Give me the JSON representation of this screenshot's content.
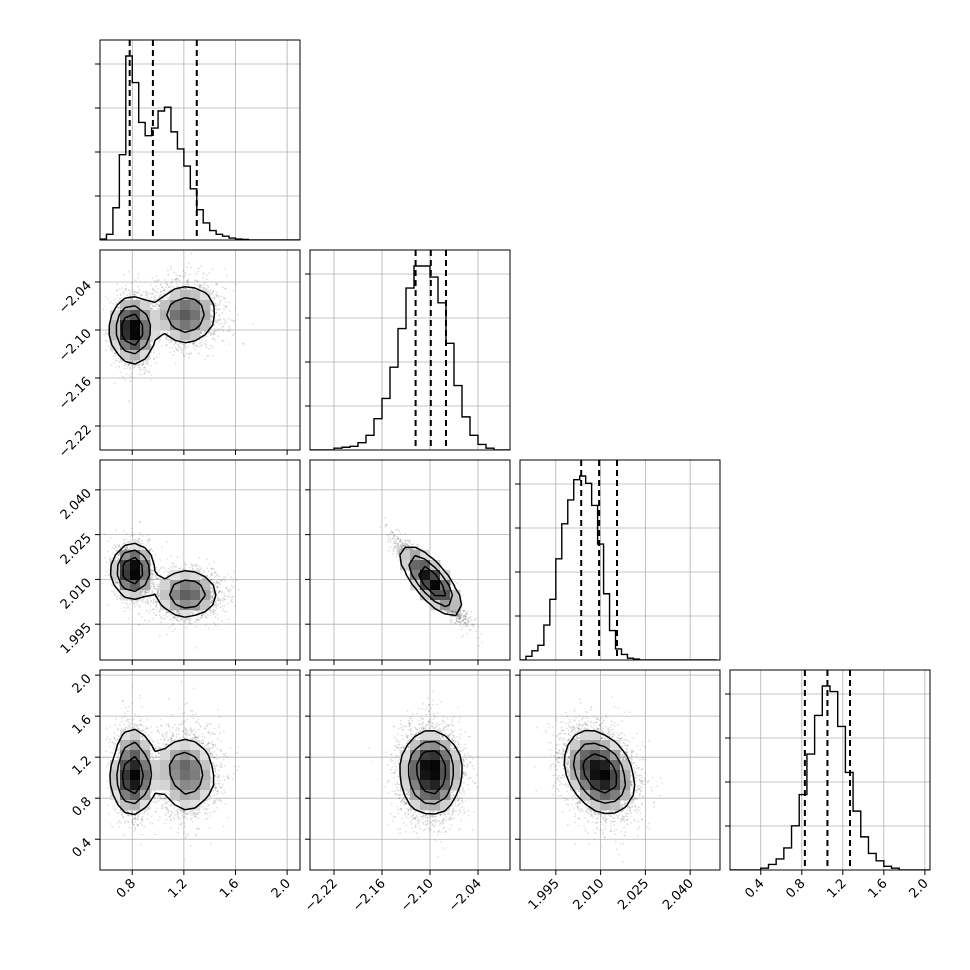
{
  "chart_data": {
    "type": "corner",
    "parameters": [
      {
        "id": "p0",
        "range": [
          0.55,
          2.1
        ],
        "ticks": [
          0.8,
          1.2,
          1.6,
          2.0
        ],
        "tick_labels": [
          "0.8",
          "1.2",
          "1.6",
          "2.0"
        ],
        "quantiles": [
          0.78,
          0.96,
          1.3
        ]
      },
      {
        "id": "p1",
        "range": [
          -2.25,
          -2.0
        ],
        "ticks": [
          -2.22,
          -2.16,
          -2.1,
          -2.04
        ],
        "tick_labels": [
          "−2.22",
          "−2.16",
          "−2.10",
          "−2.04"
        ],
        "quantiles": [
          -2.118,
          -2.099,
          -2.08
        ]
      },
      {
        "id": "p2",
        "range": [
          1.983,
          2.05
        ],
        "ticks": [
          1.995,
          2.01,
          2.025,
          2.04
        ],
        "tick_labels": [
          "1.995",
          "2.010",
          "2.025",
          "2.040"
        ],
        "quantiles": [
          2.0035,
          2.0095,
          2.0155
        ]
      },
      {
        "id": "p3",
        "range": [
          0.1,
          2.05
        ],
        "ticks": [
          0.4,
          0.8,
          1.2,
          1.6,
          2.0
        ],
        "tick_labels": [
          "0.4",
          "0.8",
          "1.2",
          "1.6",
          "2.0"
        ],
        "quantiles": [
          0.83,
          1.05,
          1.27
        ]
      }
    ],
    "histograms": [
      {
        "param": "p0",
        "bin_start": 0.55,
        "bin_width": 0.05,
        "counts": [
          0.5,
          3,
          17,
          45,
          97,
          83,
          62,
          55,
          59,
          68,
          70,
          57,
          48,
          39,
          27,
          16,
          9,
          5,
          3,
          2,
          1,
          0.5,
          0.3,
          0,
          0,
          0,
          0,
          0,
          0,
          0,
          0
        ]
      },
      {
        "param": "p1",
        "bin_start": -2.25,
        "bin_width": 0.01,
        "counts": [
          0,
          0,
          0,
          1,
          1.5,
          2,
          4,
          8,
          17,
          28,
          45,
          66,
          88,
          100,
          100,
          94,
          80,
          58,
          35,
          18,
          8,
          3,
          1,
          0,
          0
        ]
      },
      {
        "param": "p2",
        "bin_start": 1.983,
        "bin_width": 0.002,
        "counts": [
          0,
          2,
          5,
          8,
          19,
          33,
          55,
          74,
          87,
          98,
          100,
          96,
          84,
          63,
          36,
          16,
          6,
          3,
          1,
          0.5,
          0,
          0,
          0,
          0,
          0,
          0,
          0,
          0,
          0,
          0,
          0,
          0,
          0
        ]
      },
      {
        "param": "p3",
        "bin_start": 0.1,
        "bin_width": 0.075,
        "counts": [
          0,
          0,
          0,
          0,
          1,
          3,
          6,
          12,
          24,
          41,
          63,
          84,
          100,
          97,
          78,
          53,
          32,
          18,
          9,
          5,
          2,
          1,
          0,
          0,
          0,
          0
        ]
      }
    ],
    "pairs": [
      {
        "x": "p0",
        "y": "p1",
        "correlation": 0,
        "modes": [
          {
            "x": 0.8,
            "y": -2.1,
            "sx": 0.07,
            "sy": 0.022,
            "weight": 0.5
          },
          {
            "x": 1.22,
            "y": -2.08,
            "sx": 0.13,
            "sy": 0.02,
            "weight": 0.5
          }
        ]
      },
      {
        "x": "p0",
        "y": "p2",
        "correlation": 0,
        "modes": [
          {
            "x": 0.8,
            "y": 2.013,
            "sx": 0.07,
            "sy": 0.0045,
            "weight": 0.5
          },
          {
            "x": 1.22,
            "y": 2.005,
            "sx": 0.13,
            "sy": 0.004,
            "weight": 0.5
          }
        ]
      },
      {
        "x": "p0",
        "y": "p3",
        "correlation": 0,
        "modes": [
          {
            "x": 0.8,
            "y": 1.05,
            "sx": 0.07,
            "sy": 0.22,
            "weight": 0.5
          },
          {
            "x": 1.22,
            "y": 1.05,
            "sx": 0.13,
            "sy": 0.22,
            "weight": 0.5
          }
        ]
      },
      {
        "x": "p1",
        "y": "p2",
        "correlation": -0.92,
        "modes": [
          {
            "x": -2.099,
            "y": 2.0095,
            "sx": 0.019,
            "sy": 0.006,
            "weight": 1
          }
        ]
      },
      {
        "x": "p1",
        "y": "p3",
        "correlation": 0,
        "modes": [
          {
            "x": -2.099,
            "y": 1.05,
            "sx": 0.019,
            "sy": 0.22,
            "weight": 1
          }
        ]
      },
      {
        "x": "p2",
        "y": "p3",
        "correlation": -0.3,
        "modes": [
          {
            "x": 2.0095,
            "y": 1.05,
            "sx": 0.006,
            "sy": 0.22,
            "weight": 1
          }
        ]
      }
    ],
    "grid": true,
    "title": "",
    "xlabel": "",
    "ylabel": ""
  },
  "colors": {
    "ink": "#000000",
    "grid": "#b0b0b0",
    "background": "#ffffff"
  }
}
